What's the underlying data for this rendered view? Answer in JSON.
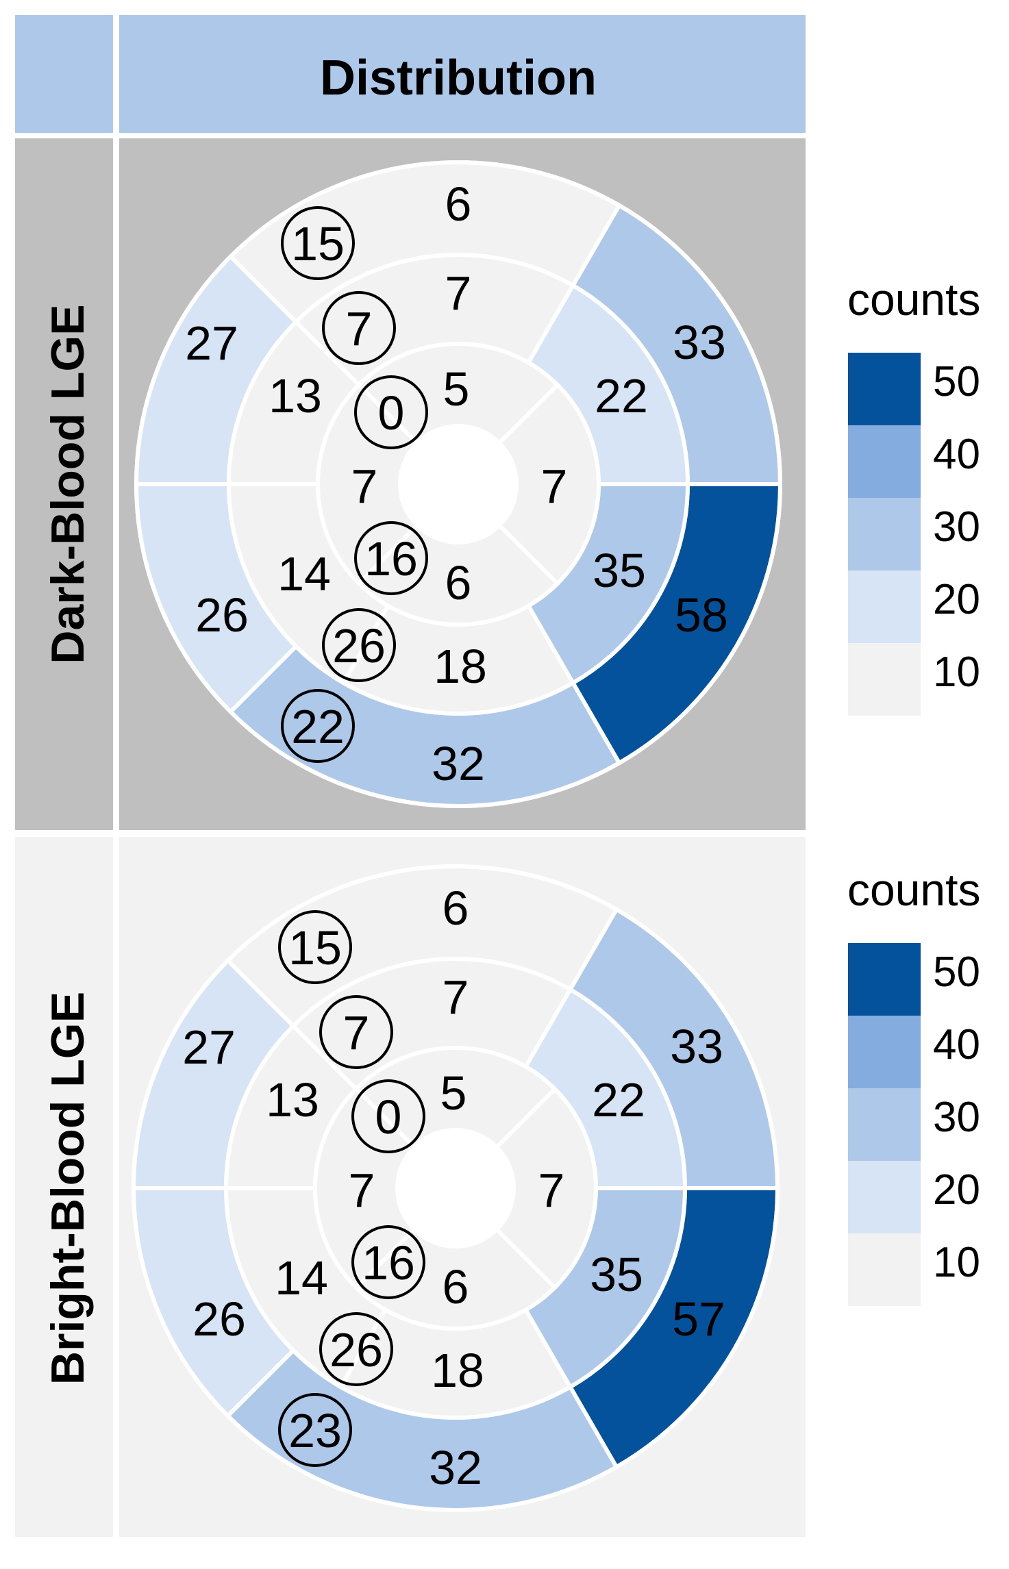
{
  "header": {
    "title": "Distribution"
  },
  "colors": {
    "header_bg": "#aec8e9",
    "panel_dark_bg": "#bfbfbf",
    "panel_bright_bg": "#f2f2f2",
    "separator": "#ffffff",
    "text": "#000000"
  },
  "legend": {
    "title": "counts",
    "bins": [
      {
        "label": "50",
        "color": "#03529b"
      },
      {
        "label": "40",
        "color": "#85acdf"
      },
      {
        "label": "30",
        "color": "#aec8e9"
      },
      {
        "label": "20",
        "color": "#d6e4f5"
      },
      {
        "label": "10",
        "color": "#f2f2f2"
      }
    ]
  },
  "chart_data": [
    {
      "type": "polar-map",
      "row_label": "Dark-Blood LGE",
      "segments": [
        {
          "id": 1,
          "value": 6,
          "circled": false
        },
        {
          "id": 2,
          "value": 15,
          "circled": true
        },
        {
          "id": 3,
          "value": 27,
          "circled": false
        },
        {
          "id": 4,
          "value": 26,
          "circled": false
        },
        {
          "id": 5,
          "value": 22,
          "circled": true
        },
        {
          "id": 6,
          "value": 32,
          "circled": false
        },
        {
          "id": 7,
          "value": 58,
          "circled": false
        },
        {
          "id": 8,
          "value": 33,
          "circled": false
        },
        {
          "id": 9,
          "value": 7,
          "circled": false
        },
        {
          "id": 10,
          "value": 7,
          "circled": true
        },
        {
          "id": 11,
          "value": 13,
          "circled": false
        },
        {
          "id": 12,
          "value": 14,
          "circled": false
        },
        {
          "id": 13,
          "value": 26,
          "circled": true
        },
        {
          "id": 14,
          "value": 18,
          "circled": false
        },
        {
          "id": 15,
          "value": 35,
          "circled": false
        },
        {
          "id": 16,
          "value": 22,
          "circled": false
        },
        {
          "id": 17,
          "value": 5,
          "circled": false
        },
        {
          "id": 18,
          "value": 0,
          "circled": true
        },
        {
          "id": 19,
          "value": 7,
          "circled": false
        },
        {
          "id": 20,
          "value": 16,
          "circled": true
        },
        {
          "id": 21,
          "value": 6,
          "circled": false
        },
        {
          "id": 22,
          "value": 7,
          "circled": false
        }
      ]
    },
    {
      "type": "polar-map",
      "row_label": "Bright-Blood LGE",
      "segments": [
        {
          "id": 1,
          "value": 6,
          "circled": false
        },
        {
          "id": 2,
          "value": 15,
          "circled": true
        },
        {
          "id": 3,
          "value": 27,
          "circled": false
        },
        {
          "id": 4,
          "value": 26,
          "circled": false
        },
        {
          "id": 5,
          "value": 23,
          "circled": true
        },
        {
          "id": 6,
          "value": 32,
          "circled": false
        },
        {
          "id": 7,
          "value": 57,
          "circled": false
        },
        {
          "id": 8,
          "value": 33,
          "circled": false
        },
        {
          "id": 9,
          "value": 7,
          "circled": false
        },
        {
          "id": 10,
          "value": 7,
          "circled": true
        },
        {
          "id": 11,
          "value": 13,
          "circled": false
        },
        {
          "id": 12,
          "value": 14,
          "circled": false
        },
        {
          "id": 13,
          "value": 26,
          "circled": true
        },
        {
          "id": 14,
          "value": 18,
          "circled": false
        },
        {
          "id": 15,
          "value": 35,
          "circled": false
        },
        {
          "id": 16,
          "value": 22,
          "circled": false
        },
        {
          "id": 17,
          "value": 5,
          "circled": false
        },
        {
          "id": 18,
          "value": 0,
          "circled": true
        },
        {
          "id": 19,
          "value": 7,
          "circled": false
        },
        {
          "id": 20,
          "value": 16,
          "circled": true
        },
        {
          "id": 21,
          "value": 6,
          "circled": false
        },
        {
          "id": 22,
          "value": 7,
          "circled": false
        }
      ]
    }
  ]
}
